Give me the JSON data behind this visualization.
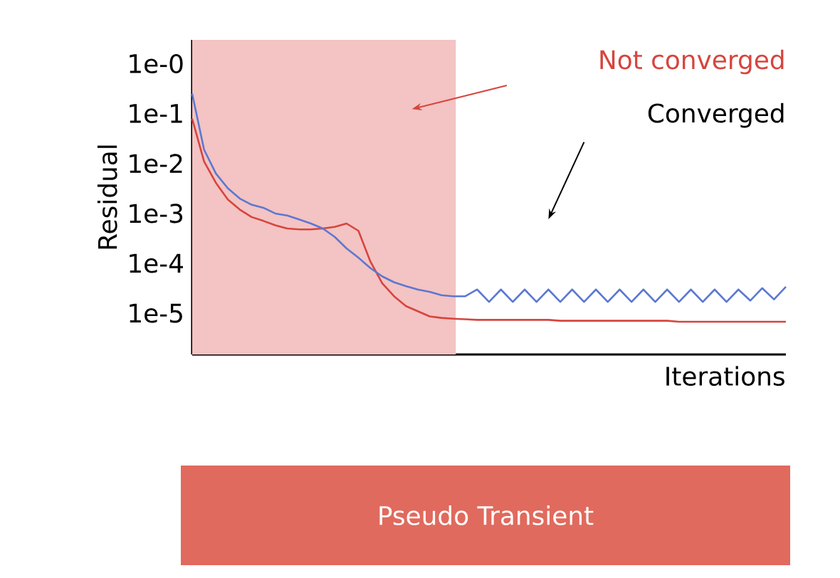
{
  "chart_data": {
    "type": "line",
    "xlabel": "Iterations",
    "ylabel": "Residual",
    "log": "y",
    "categories": [
      null,
      null,
      null,
      null,
      null,
      null,
      null,
      null,
      null,
      null,
      null,
      null,
      null,
      null,
      null,
      null,
      null,
      null,
      null,
      null,
      null,
      null,
      null,
      null,
      null,
      null,
      null,
      null,
      null,
      null,
      null,
      null,
      null,
      null,
      null,
      null,
      null,
      null,
      null,
      null,
      null,
      null,
      null,
      null,
      null,
      null,
      null,
      null,
      null,
      null,
      null
    ],
    "ylim": [
      1.5e-06,
      3
    ],
    "yticks": [
      {
        "value": 1,
        "label": "1e-0"
      },
      {
        "value": 0.1,
        "label": "1e-1"
      },
      {
        "value": 0.01,
        "label": "1e-2"
      },
      {
        "value": 0.001,
        "label": "1e-3"
      },
      {
        "value": 0.0001,
        "label": "1e-4"
      },
      {
        "value": 1e-05,
        "label": "1e-5"
      }
    ],
    "tick_labels": "y",
    "marker": "none",
    "line_style": "solid",
    "series": [
      {
        "color": "#d6453e",
        "values": [
          0.079,
          0.011,
          0.0041,
          0.0019,
          0.0012,
          0.00085,
          0.00071,
          0.00058,
          0.0005,
          0.00048,
          0.00048,
          0.0005,
          0.00054,
          0.00063,
          0.00045,
          0.00011,
          4e-05,
          2.2e-05,
          1.4e-05,
          1.1e-05,
          8.7e-06,
          8.1e-06,
          7.8e-06,
          7.6e-06,
          7.4e-06,
          7.4e-06,
          7.4e-06,
          7.4e-06,
          7.4e-06,
          7.4e-06,
          7.4e-06,
          7.1e-06,
          7.1e-06,
          7.1e-06,
          7.1e-06,
          7.1e-06,
          7.1e-06,
          7.1e-06,
          7.1e-06,
          7.1e-06,
          7.1e-06,
          6.8e-06,
          6.8e-06,
          6.8e-06,
          6.8e-06,
          6.8e-06,
          6.8e-06,
          6.8e-06,
          6.8e-06,
          6.8e-06,
          6.8e-06
        ]
      },
      {
        "color": "#5b78d2",
        "values": [
          0.25,
          0.019,
          0.0063,
          0.0032,
          0.002,
          0.0015,
          0.0013,
          0.001,
          0.00091,
          0.00076,
          0.00063,
          0.0005,
          0.00034,
          0.0002,
          0.00013,
          8.1e-05,
          5.5e-05,
          4.2e-05,
          3.5e-05,
          3e-05,
          2.7e-05,
          2.3e-05,
          2.2e-05,
          2.2e-05,
          3e-05,
          1.7e-05,
          3e-05,
          1.7e-05,
          3e-05,
          1.7e-05,
          3e-05,
          1.7e-05,
          3e-05,
          1.7e-05,
          3e-05,
          1.7e-05,
          3e-05,
          1.7e-05,
          3e-05,
          1.7e-05,
          3e-05,
          1.7e-05,
          3e-05,
          1.7e-05,
          3e-05,
          1.7e-05,
          3e-05,
          1.8e-05,
          3.2e-05,
          1.9e-05,
          3.4e-05
        ]
      }
    ],
    "annotations": [
      "Not converged",
      "Converged",
      "Pseudo Transient"
    ]
  }
}
